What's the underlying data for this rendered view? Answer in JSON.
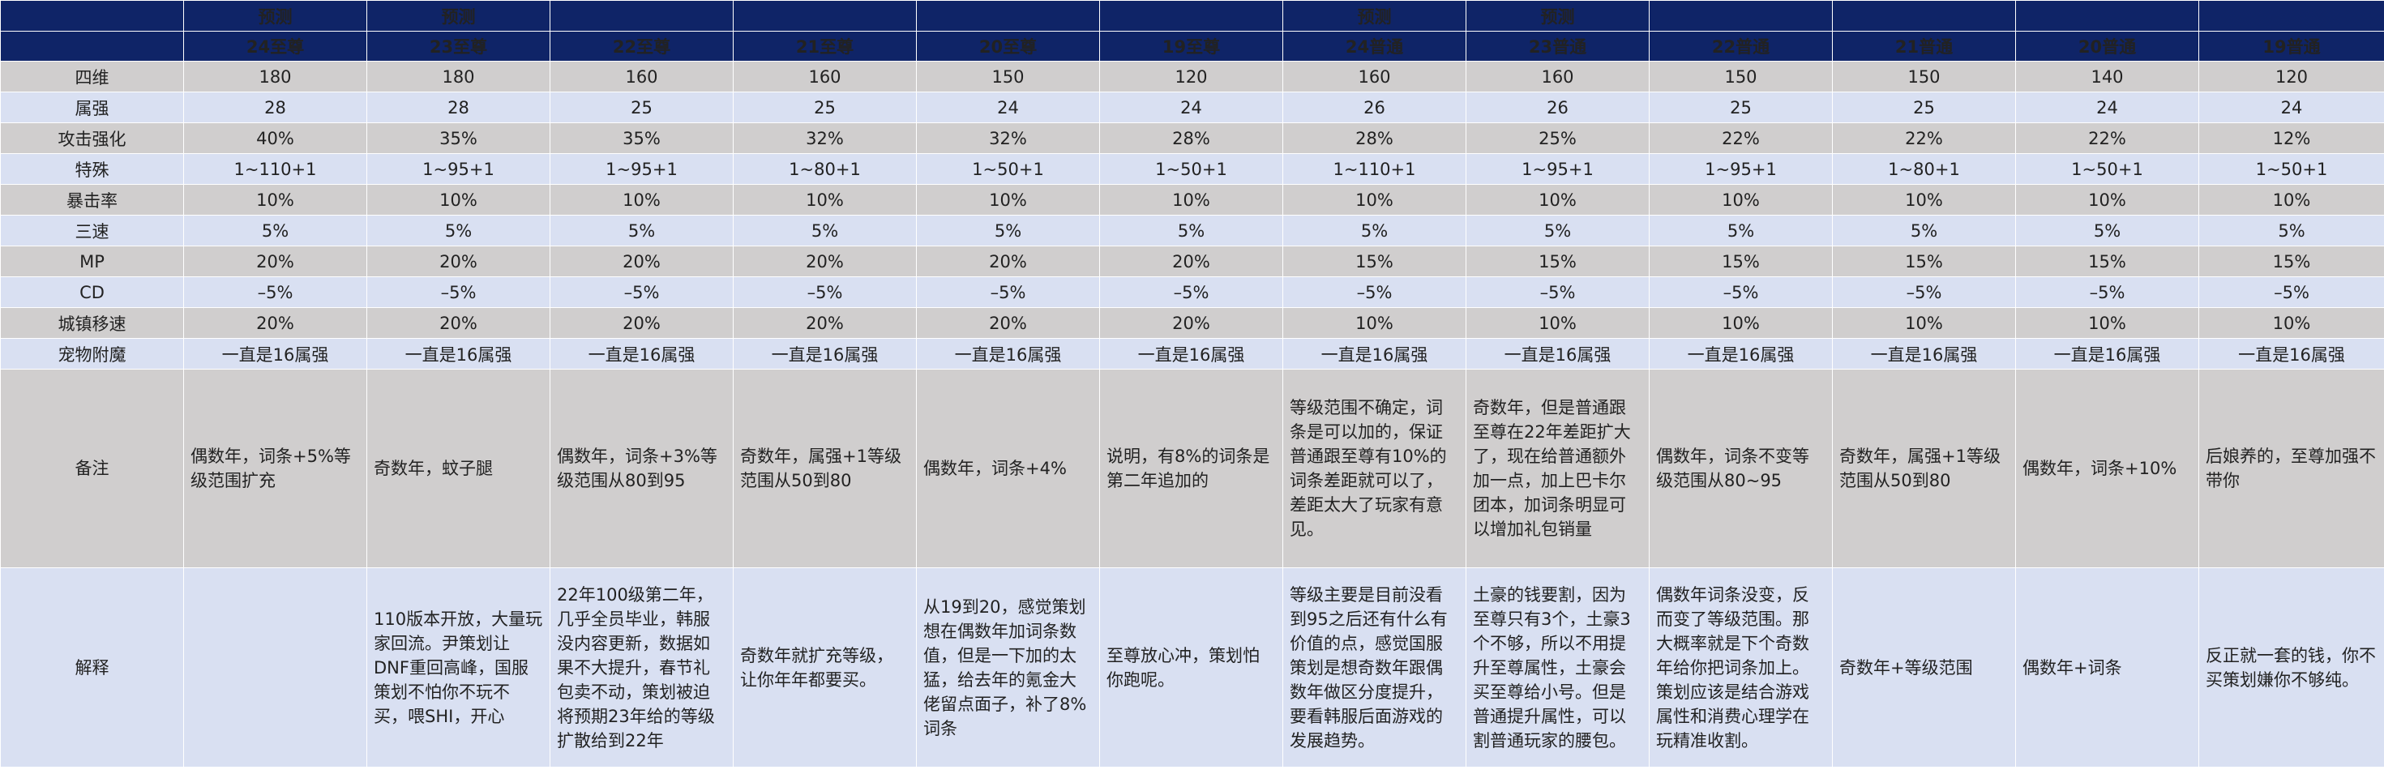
{
  "columns": [
    {
      "predict": "预测",
      "title": "24至尊"
    },
    {
      "predict": "预测",
      "title": "23至尊"
    },
    {
      "predict": "",
      "title": "22至尊"
    },
    {
      "predict": "",
      "title": "21至尊"
    },
    {
      "predict": "",
      "title": "20至尊"
    },
    {
      "predict": "",
      "title": "19至尊"
    },
    {
      "predict": "预测",
      "title": "24普通"
    },
    {
      "predict": "预测",
      "title": "23普通"
    },
    {
      "predict": "",
      "title": "22普通"
    },
    {
      "predict": "",
      "title": "21普通"
    },
    {
      "predict": "",
      "title": "20普通"
    },
    {
      "predict": "",
      "title": "19普通"
    }
  ],
  "rows": [
    {
      "label": "四维",
      "values": [
        "180",
        "180",
        "160",
        "160",
        "150",
        "120",
        "160",
        "160",
        "150",
        "150",
        "140",
        "120"
      ]
    },
    {
      "label": "属强",
      "values": [
        "28",
        "28",
        "25",
        "25",
        "24",
        "24",
        "26",
        "26",
        "25",
        "25",
        "24",
        "24"
      ]
    },
    {
      "label": "攻击强化",
      "values": [
        "40%",
        "35%",
        "35%",
        "32%",
        "32%",
        "28%",
        "28%",
        "25%",
        "22%",
        "22%",
        "22%",
        "12%"
      ]
    },
    {
      "label": "特殊",
      "values": [
        "1~110+1",
        "1~95+1",
        "1~95+1",
        "1~80+1",
        "1~50+1",
        "1~50+1",
        "1~110+1",
        "1~95+1",
        "1~95+1",
        "1~80+1",
        "1~50+1",
        "1~50+1"
      ]
    },
    {
      "label": "暴击率",
      "values": [
        "10%",
        "10%",
        "10%",
        "10%",
        "10%",
        "10%",
        "10%",
        "10%",
        "10%",
        "10%",
        "10%",
        "10%"
      ]
    },
    {
      "label": "三速",
      "values": [
        "5%",
        "5%",
        "5%",
        "5%",
        "5%",
        "5%",
        "5%",
        "5%",
        "5%",
        "5%",
        "5%",
        "5%"
      ]
    },
    {
      "label": "MP",
      "values": [
        "20%",
        "20%",
        "20%",
        "20%",
        "20%",
        "20%",
        "15%",
        "15%",
        "15%",
        "15%",
        "15%",
        "15%"
      ]
    },
    {
      "label": "CD",
      "values": [
        "–5%",
        "–5%",
        "–5%",
        "–5%",
        "–5%",
        "–5%",
        "–5%",
        "–5%",
        "–5%",
        "–5%",
        "–5%",
        "–5%"
      ]
    },
    {
      "label": "城镇移速",
      "values": [
        "20%",
        "20%",
        "20%",
        "20%",
        "20%",
        "20%",
        "10%",
        "10%",
        "10%",
        "10%",
        "10%",
        "10%"
      ]
    },
    {
      "label": "宠物附魔",
      "values": [
        "一直是16属强",
        "一直是16属强",
        "一直是16属强",
        "一直是16属强",
        "一直是16属强",
        "一直是16属强",
        "一直是16属强",
        "一直是16属强",
        "一直是16属强",
        "一直是16属强",
        "一直是16属强",
        "一直是16属强"
      ]
    }
  ],
  "notes": {
    "label": "备注",
    "values": [
      "偶数年，词条+5%等级范围扩充",
      "奇数年，蚊子腿",
      "偶数年，词条+3%等级范围从80到95",
      "奇数年，属强+1等级范围从50到80",
      "偶数年，词条+4%",
      "说明，有8%的词条是第二年追加的",
      "等级范围不确定，词条是可以加的，保证普通跟至尊有10%的词条差距就可以了，差距太大了玩家有意见。",
      "奇数年，但是普通跟至尊在22年差距扩大了，现在给普通额外加一点，加上巴卡尔团本，加词条明显可以增加礼包销量",
      "偶数年，词条不变等级范围从80~95",
      "奇数年，属强+1等级范围从50到80",
      "偶数年，词条+10%",
      "后娘养的，至尊加强不带你"
    ]
  },
  "explanations": {
    "label": "解释",
    "values": [
      "",
      "110版本开放，大量玩家回流。尹策划让DNF重回高峰，国服策划不怕你不玩不买，喂SHI，开心",
      "22年100级第二年，几乎全员毕业，韩服没内容更新，数据如果不大提升，春节礼包卖不动，策划被迫将预期23年给的等级扩散给到22年",
      "奇数年就扩充等级，让你年年都要买。",
      "从19到20，感觉策划想在偶数年加词条数值，但是一下加的太猛，给去年的氪金大佬留点面子，补了8%词条",
      "至尊放心冲，策划怕你跑呢。",
      "等级主要是目前没看到95之后还有什么有价值的点，感觉国服策划是想奇数年跟偶数年做区分度提升，要看韩服后面游戏的发展趋势。",
      "土豪的钱要割，因为至尊只有3个，土豪3个不够，所以不用提升至尊属性，土豪会买至尊给小号。但是普通提升属性，可以割普通玩家的腰包。",
      "偶数年词条没变，反而变了等级范围。那大概率就是下个奇数年给你把词条加上。策划应该是结合游戏属性和消费心理学在玩精准收割。",
      "奇数年+等级范围",
      "偶数年+词条",
      "反正就一套的钱，你不买策划嫌你不够纯。"
    ]
  }
}
